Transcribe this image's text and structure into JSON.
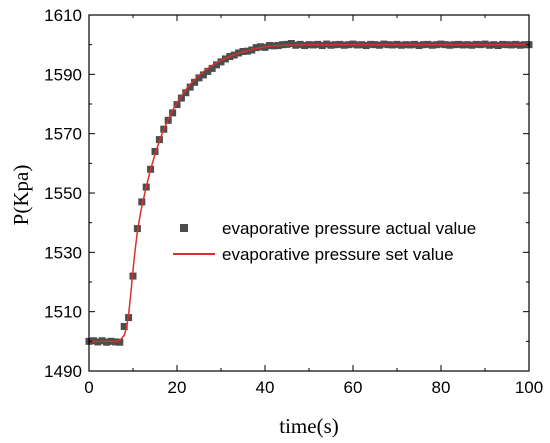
{
  "chart_data": {
    "type": "scatter",
    "xlabel": "time(s)",
    "ylabel": "P(Kpa)",
    "xlim": [
      0,
      100
    ],
    "ylim": [
      1490,
      1610
    ],
    "xticks": [
      0,
      20,
      40,
      60,
      80,
      100
    ],
    "yticks": [
      1490,
      1510,
      1530,
      1550,
      1570,
      1590,
      1610
    ],
    "legend_position": "right-center",
    "grid": false,
    "series": [
      {
        "name": "evaporative pressure actual value",
        "kind": "scatter",
        "marker": "square",
        "color": "#4d4d4d",
        "x": [
          0,
          1,
          2,
          3,
          4,
          5,
          6,
          7,
          8,
          9,
          10,
          11,
          12,
          13,
          14,
          15,
          16,
          17,
          18,
          19,
          20,
          21,
          22,
          23,
          24,
          25,
          26,
          27,
          28,
          29,
          30,
          31,
          32,
          33,
          34,
          35,
          36,
          37,
          38,
          39,
          40,
          41,
          42,
          43,
          44,
          45,
          46,
          47,
          48,
          49,
          50,
          51,
          52,
          53,
          54,
          55,
          56,
          57,
          58,
          59,
          60,
          61,
          62,
          63,
          64,
          65,
          66,
          67,
          68,
          69,
          70,
          71,
          72,
          73,
          74,
          75,
          76,
          77,
          78,
          79,
          80,
          81,
          82,
          83,
          84,
          85,
          86,
          87,
          88,
          89,
          90,
          91,
          92,
          93,
          94,
          95,
          96,
          97,
          98,
          99,
          100
        ],
        "y": [
          1500,
          1500.2,
          1499.8,
          1500.2,
          1499.7,
          1500,
          1499.8,
          1499.7,
          1505,
          1508,
          1522,
          1538,
          1547,
          1552,
          1558,
          1564,
          1568,
          1571.5,
          1574.5,
          1577,
          1579.8,
          1582,
          1583.8,
          1585.7,
          1587.3,
          1588.8,
          1589.8,
          1591,
          1592,
          1593.2,
          1594.2,
          1595.2,
          1596,
          1596.5,
          1597.2,
          1597.7,
          1597.8,
          1598.2,
          1599,
          1599.3,
          1599.1,
          1599.7,
          1599.6,
          1599.7,
          1600,
          1600.1,
          1600.4,
          1599.8,
          1600.1,
          1599.7,
          1600,
          1599.9,
          1600.1,
          1599.7,
          1600.2,
          1599.8,
          1600,
          1600.1,
          1599.8,
          1600,
          1600.2,
          1599.9,
          1600,
          1599.7,
          1600.1,
          1600,
          1599.8,
          1600.2,
          1600,
          1599.9,
          1600.1,
          1599.8,
          1600,
          1599.9,
          1600.1,
          1599.7,
          1600,
          1600.1,
          1599.8,
          1600,
          1600.2,
          1600,
          1599.8,
          1600,
          1600.1,
          1599.9,
          1600,
          1599.8,
          1600.1,
          1600,
          1600.2,
          1599.8,
          1600,
          1599.7,
          1600.1,
          1600,
          1599.9,
          1600.1,
          1599.8,
          1600,
          1600
        ]
      },
      {
        "name": "evaporative pressure set value",
        "kind": "line",
        "color": "#d9312b",
        "x": [
          0,
          2,
          4,
          6,
          7,
          8,
          8.5,
          9,
          9.5,
          10,
          10.5,
          11,
          11.5,
          12,
          13,
          14,
          15,
          16,
          17,
          18,
          19,
          20,
          21,
          22,
          23,
          24,
          25,
          26,
          27,
          28,
          29,
          30,
          31,
          32,
          33,
          34,
          35,
          36,
          37,
          38,
          39,
          40,
          42,
          44,
          46,
          50,
          55,
          60,
          70,
          80,
          90,
          100
        ],
        "y": [
          1500,
          1500,
          1500,
          1500,
          1500.3,
          1502,
          1504.5,
          1509,
          1516,
          1524,
          1531,
          1537,
          1541.5,
          1545.5,
          1552,
          1558,
          1563,
          1567.5,
          1571.5,
          1574.8,
          1577.8,
          1580.4,
          1582.7,
          1584.8,
          1586.6,
          1588.2,
          1589.6,
          1590.9,
          1592,
          1593,
          1593.9,
          1594.7,
          1595.4,
          1596,
          1596.6,
          1597.1,
          1597.6,
          1598,
          1598.4,
          1598.7,
          1599,
          1599.3,
          1599.6,
          1599.8,
          1599.9,
          1600,
          1600,
          1600,
          1600,
          1600,
          1600,
          1600
        ]
      }
    ]
  }
}
